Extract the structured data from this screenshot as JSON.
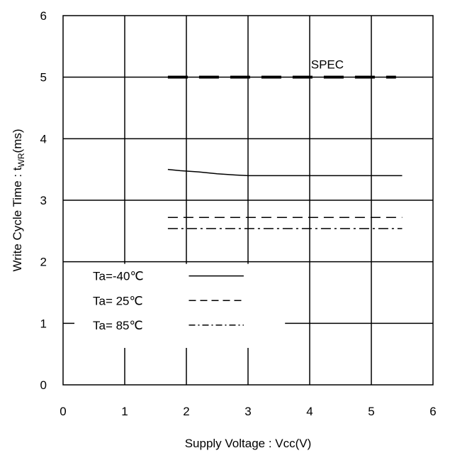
{
  "chart_data": {
    "type": "line",
    "xlabel": "Supply Voltage : Vcc(V)",
    "ylabel_main": "Write Cycle Time : t",
    "ylabel_sub": "WR",
    "ylabel_unit": "(ms)",
    "xlim": [
      0,
      6
    ],
    "ylim": [
      0,
      6
    ],
    "x_ticks": [
      0,
      1,
      2,
      3,
      4,
      5,
      6
    ],
    "y_ticks": [
      0,
      1,
      2,
      3,
      4,
      5,
      6
    ],
    "grid": true,
    "legend_position": "lower-left",
    "series": [
      {
        "name": "Ta=-40℃",
        "style": "solid",
        "x": [
          1.7,
          1.9,
          2.2,
          2.5,
          2.8,
          3.0,
          3.5,
          4.0,
          4.5,
          5.0,
          5.5
        ],
        "y": [
          3.5,
          3.48,
          3.46,
          3.43,
          3.41,
          3.4,
          3.4,
          3.4,
          3.4,
          3.4,
          3.4
        ]
      },
      {
        "name": "Ta= 25℃",
        "style": "dashed",
        "x": [
          1.7,
          5.5
        ],
        "y": [
          2.72,
          2.72
        ]
      },
      {
        "name": "Ta= 85℃",
        "style": "dashdot",
        "x": [
          1.7,
          5.5
        ],
        "y": [
          2.54,
          2.54
        ]
      }
    ],
    "spec": {
      "label": "SPEC",
      "y": 5.0,
      "x": [
        1.7,
        5.4
      ]
    }
  }
}
